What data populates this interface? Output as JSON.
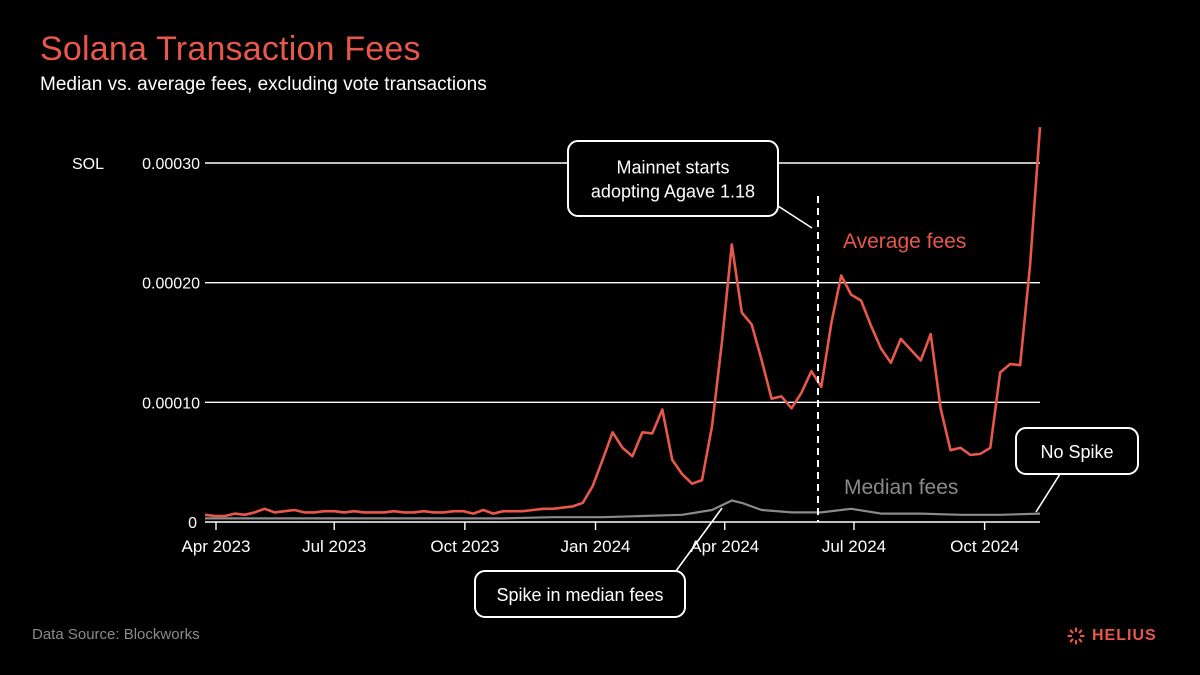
{
  "header": {
    "title": "Solana Transaction Fees",
    "subtitle": "Median vs. average fees, excluding vote transactions"
  },
  "footer": {
    "source": "Data Source: Blockworks",
    "brand": "HELIUS",
    "brand_icon": "helius-logo-icon"
  },
  "colors": {
    "background": "#000000",
    "average": "#e8584a",
    "median": "#8a8a8a",
    "text": "#ffffff",
    "grid": "#ffffff"
  },
  "chart_data": {
    "type": "line",
    "unit_label": "SOL",
    "x_tick_labels": [
      "Apr 2023",
      "Jul 2023",
      "Oct 2023",
      "Jan 2024",
      "Apr 2024",
      "Jul 2024",
      "Oct 2024"
    ],
    "y_tick_labels": [
      "0",
      "0.00010",
      "0.00020",
      "0.00030"
    ],
    "y_ticks": [
      0,
      0.0001,
      0.0002,
      0.0003
    ],
    "ylim": [
      0,
      0.00034
    ],
    "xlim": [
      "2023-04-01",
      "2024-10-31"
    ],
    "grid": "horizontal",
    "series": [
      {
        "name": "Average fees",
        "points": [
          [
            "2023-04-01",
            6e-06
          ],
          [
            "2023-04-08",
            5e-06
          ],
          [
            "2023-04-15",
            5e-06
          ],
          [
            "2023-04-22",
            7e-06
          ],
          [
            "2023-04-29",
            6e-06
          ],
          [
            "2023-05-06",
            8e-06
          ],
          [
            "2023-05-13",
            1.1e-05
          ],
          [
            "2023-05-20",
            8e-06
          ],
          [
            "2023-05-27",
            9e-06
          ],
          [
            "2023-06-03",
            1e-05
          ],
          [
            "2023-06-10",
            8e-06
          ],
          [
            "2023-06-17",
            8e-06
          ],
          [
            "2023-06-24",
            9e-06
          ],
          [
            "2023-07-01",
            9e-06
          ],
          [
            "2023-07-08",
            8e-06
          ],
          [
            "2023-07-15",
            9e-06
          ],
          [
            "2023-07-22",
            8e-06
          ],
          [
            "2023-07-29",
            8e-06
          ],
          [
            "2023-08-05",
            8e-06
          ],
          [
            "2023-08-12",
            9e-06
          ],
          [
            "2023-08-19",
            8e-06
          ],
          [
            "2023-08-26",
            8e-06
          ],
          [
            "2023-09-02",
            9e-06
          ],
          [
            "2023-09-09",
            8e-06
          ],
          [
            "2023-09-16",
            8e-06
          ],
          [
            "2023-09-23",
            9e-06
          ],
          [
            "2023-09-30",
            9e-06
          ],
          [
            "2023-10-07",
            7e-06
          ],
          [
            "2023-10-14",
            1e-05
          ],
          [
            "2023-10-21",
            7e-06
          ],
          [
            "2023-10-28",
            9e-06
          ],
          [
            "2023-11-04",
            9e-06
          ],
          [
            "2023-11-11",
            9e-06
          ],
          [
            "2023-11-18",
            1e-05
          ],
          [
            "2023-11-25",
            1.1e-05
          ],
          [
            "2023-12-02",
            1.1e-05
          ],
          [
            "2023-12-09",
            1.2e-05
          ],
          [
            "2023-12-16",
            1.3e-05
          ],
          [
            "2023-12-23",
            1.6e-05
          ],
          [
            "2023-12-30",
            3e-05
          ],
          [
            "2024-01-06",
            5.2e-05
          ],
          [
            "2024-01-13",
            7.5e-05
          ],
          [
            "2024-01-20",
            6.2e-05
          ],
          [
            "2024-01-27",
            5.5e-05
          ],
          [
            "2024-02-03",
            7.5e-05
          ],
          [
            "2024-02-10",
            7.4e-05
          ],
          [
            "2024-02-17",
            9.4e-05
          ],
          [
            "2024-02-24",
            5.2e-05
          ],
          [
            "2024-03-02",
            4e-05
          ],
          [
            "2024-03-09",
            3.2e-05
          ],
          [
            "2024-03-16",
            3.5e-05
          ],
          [
            "2024-03-23",
            8e-05
          ],
          [
            "2024-03-30",
            0.00015
          ],
          [
            "2024-04-06",
            0.000232
          ],
          [
            "2024-04-13",
            0.000175
          ],
          [
            "2024-04-20",
            0.000165
          ],
          [
            "2024-04-27",
            0.000135
          ],
          [
            "2024-05-04",
            0.000103
          ],
          [
            "2024-05-11",
            0.000105
          ],
          [
            "2024-05-18",
            9.5e-05
          ],
          [
            "2024-05-25",
            0.000108
          ],
          [
            "2024-06-01",
            0.000126
          ],
          [
            "2024-06-08",
            0.000113
          ],
          [
            "2024-06-15",
            0.000166
          ],
          [
            "2024-06-22",
            0.000206
          ],
          [
            "2024-06-29",
            0.00019
          ],
          [
            "2024-07-06",
            0.000185
          ],
          [
            "2024-07-13",
            0.000164
          ],
          [
            "2024-07-20",
            0.000145
          ],
          [
            "2024-07-27",
            0.000133
          ],
          [
            "2024-08-03",
            0.000153
          ],
          [
            "2024-08-10",
            0.000144
          ],
          [
            "2024-08-17",
            0.000135
          ],
          [
            "2024-08-24",
            0.000157
          ],
          [
            "2024-08-31",
            9.5e-05
          ],
          [
            "2024-09-07",
            6e-05
          ],
          [
            "2024-09-14",
            6.2e-05
          ],
          [
            "2024-09-21",
            5.6e-05
          ],
          [
            "2024-09-28",
            5.7e-05
          ],
          [
            "2024-10-05",
            6.2e-05
          ],
          [
            "2024-10-12",
            0.000125
          ],
          [
            "2024-10-19",
            0.000132
          ],
          [
            "2024-10-26",
            0.000131
          ],
          [
            "2024-11-02",
            0.000215
          ],
          [
            "2024-11-09",
            0.00033
          ]
        ]
      },
      {
        "name": "Median fees",
        "points": [
          [
            "2023-04-01",
            3e-06
          ],
          [
            "2023-05-13",
            3e-06
          ],
          [
            "2023-07-01",
            3e-06
          ],
          [
            "2023-09-02",
            3e-06
          ],
          [
            "2023-10-28",
            3e-06
          ],
          [
            "2023-12-02",
            4e-06
          ],
          [
            "2024-01-06",
            4e-06
          ],
          [
            "2024-02-03",
            5e-06
          ],
          [
            "2024-03-02",
            6e-06
          ],
          [
            "2024-03-23",
            1e-05
          ],
          [
            "2024-04-06",
            1.8e-05
          ],
          [
            "2024-04-13",
            1.6e-05
          ],
          [
            "2024-04-27",
            1e-05
          ],
          [
            "2024-05-18",
            8e-06
          ],
          [
            "2024-06-08",
            8e-06
          ],
          [
            "2024-06-29",
            1.1e-05
          ],
          [
            "2024-07-20",
            7e-06
          ],
          [
            "2024-08-17",
            7e-06
          ],
          [
            "2024-09-14",
            6e-06
          ],
          [
            "2024-10-12",
            6e-06
          ],
          [
            "2024-11-09",
            7e-06
          ]
        ]
      }
    ],
    "annotations": [
      {
        "text": "Mainnet starts\nadopting Agave 1.18",
        "event_date": "2024-06-05",
        "type": "vertical-dashed-line"
      },
      {
        "text": "Spike in median fees",
        "event_date": "2024-04-06"
      },
      {
        "text": "No Spike",
        "event_date": "2024-11-09"
      }
    ]
  }
}
